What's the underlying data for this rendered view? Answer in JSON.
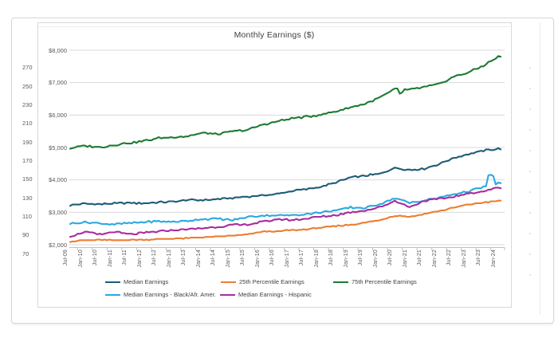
{
  "slide": {
    "kind": "presentation-slide"
  },
  "background_chart": {
    "left_axis_labels": [
      "270",
      "250",
      "230",
      "210",
      "190",
      "170",
      "150",
      "130",
      "110",
      "90",
      "70"
    ]
  },
  "chart_data": {
    "type": "line",
    "title": "Monthly Earnings ($)",
    "xlabel": "",
    "ylabel": "",
    "ylim": [
      2000,
      8000
    ],
    "y_tick_step": 1000,
    "y_tick_labels": [
      "$8,000",
      "$7,000",
      "$6,000",
      "$5,000",
      "$4,000",
      "$3,000",
      "$2,000"
    ],
    "grid": true,
    "legend_position": "bottom",
    "x_tick_interval_months": 6,
    "x": [
      "Jul-09",
      "Jan-10",
      "Jul-10",
      "Jan-11",
      "Jul-11",
      "Jan-12",
      "Jul-12",
      "Jan-13",
      "Jul-13",
      "Jan-14",
      "Jul-14",
      "Jan-15",
      "Jul-15",
      "Jan-16",
      "Jul-16",
      "Jan-17",
      "Jul-17",
      "Jan-18",
      "Jul-18",
      "Jan-19",
      "Jul-19",
      "Jan-20",
      "Jul-20",
      "Jan-21",
      "Jul-21",
      "Jan-22",
      "Jul-22",
      "Jan-23",
      "Jul-23",
      "Jan-24"
    ],
    "series": [
      {
        "name": "Median Earnings",
        "color": "#1E5C78",
        "jitter": 45,
        "values": [
          3220,
          3270,
          3250,
          3270,
          3290,
          3280,
          3310,
          3330,
          3380,
          3370,
          3410,
          3440,
          3480,
          3520,
          3560,
          3660,
          3710,
          3790,
          3920,
          4080,
          4130,
          4190,
          4370,
          4310,
          4340,
          4490,
          4680,
          4800,
          4900,
          4960
        ]
      },
      {
        "name": "25th Percentile Earnings",
        "color": "#ED7D31",
        "jitter": 30,
        "values": [
          2100,
          2140,
          2150,
          2130,
          2150,
          2160,
          2170,
          2190,
          2200,
          2230,
          2250,
          2280,
          2310,
          2400,
          2410,
          2450,
          2480,
          2530,
          2570,
          2620,
          2680,
          2760,
          2900,
          2860,
          2950,
          3040,
          3140,
          3240,
          3300,
          3350
        ]
      },
      {
        "name": "75th Percentile Earnings",
        "color": "#1E7B34",
        "jitter": 55,
        "values": [
          4980,
          5050,
          5010,
          5080,
          5140,
          5200,
          5290,
          5320,
          5350,
          5450,
          5410,
          5500,
          5540,
          5700,
          5800,
          5890,
          5950,
          6010,
          6110,
          6240,
          6350,
          6550,
          6800,
          6780,
          6860,
          6950,
          7180,
          7320,
          7520,
          7800
        ],
        "monthly_overrides": [
          [
            134,
            6660
          ],
          [
            135,
            6690
          ]
        ]
      },
      {
        "name": "Median Earnings - Black/Afr. Amer.",
        "color": "#2BA9E0",
        "jitter": 50,
        "values": [
          2650,
          2700,
          2660,
          2630,
          2660,
          2700,
          2720,
          2710,
          2740,
          2790,
          2800,
          2760,
          2850,
          2900,
          2910,
          2910,
          2950,
          2990,
          3060,
          3150,
          3130,
          3260,
          3440,
          3290,
          3370,
          3450,
          3560,
          3650,
          3780,
          3900
        ],
        "monthly_overrides": [
          [
            170,
            4140
          ],
          [
            171,
            4160
          ],
          [
            172,
            4120
          ]
        ]
      },
      {
        "name": "Median Earnings - Hispanic",
        "color": "#A82C9E",
        "jitter": 55,
        "values": [
          2260,
          2400,
          2310,
          2400,
          2320,
          2360,
          2410,
          2450,
          2480,
          2510,
          2550,
          2600,
          2620,
          2700,
          2790,
          2760,
          2810,
          2860,
          2910,
          3000,
          3060,
          3160,
          3350,
          3160,
          3360,
          3410,
          3480,
          3580,
          3650,
          3760
        ]
      }
    ]
  }
}
